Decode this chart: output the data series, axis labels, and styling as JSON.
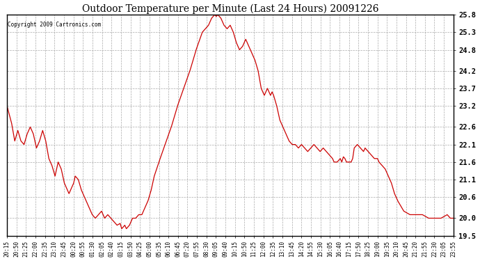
{
  "title": "Outdoor Temperature per Minute (Last 24 Hours) 20091226",
  "copyright_text": "Copyright 2009 Cartronics.com",
  "line_color": "#cc0000",
  "bg_color": "#ffffff",
  "grid_color": "#aaaaaa",
  "ylim": [
    19.5,
    25.8
  ],
  "yticks": [
    19.5,
    20.0,
    20.6,
    21.1,
    21.6,
    22.1,
    22.6,
    23.2,
    23.7,
    24.2,
    24.8,
    25.3,
    25.8
  ],
  "x_labels": [
    "20:15",
    "20:50",
    "21:25",
    "22:00",
    "22:35",
    "23:10",
    "23:45",
    "00:20",
    "00:55",
    "01:30",
    "02:05",
    "02:40",
    "03:15",
    "03:50",
    "04:25",
    "05:00",
    "05:35",
    "06:10",
    "06:45",
    "07:20",
    "07:55",
    "08:30",
    "09:05",
    "09:40",
    "10:15",
    "10:50",
    "11:25",
    "12:00",
    "12:35",
    "13:10",
    "13:45",
    "14:20",
    "14:55",
    "15:30",
    "16:05",
    "16:40",
    "17:15",
    "17:50",
    "18:25",
    "19:00",
    "19:35",
    "20:10",
    "20:45",
    "21:20",
    "21:55",
    "22:30",
    "23:05",
    "23:55"
  ],
  "keypoints": [
    [
      0,
      23.2
    ],
    [
      15,
      22.7
    ],
    [
      25,
      22.2
    ],
    [
      35,
      22.5
    ],
    [
      45,
      22.2
    ],
    [
      55,
      22.1
    ],
    [
      65,
      22.4
    ],
    [
      75,
      22.6
    ],
    [
      85,
      22.4
    ],
    [
      95,
      22.0
    ],
    [
      105,
      22.2
    ],
    [
      115,
      22.5
    ],
    [
      125,
      22.2
    ],
    [
      135,
      21.7
    ],
    [
      145,
      21.5
    ],
    [
      155,
      21.2
    ],
    [
      165,
      21.6
    ],
    [
      175,
      21.4
    ],
    [
      185,
      21.0
    ],
    [
      200,
      20.7
    ],
    [
      215,
      21.0
    ],
    [
      220,
      21.2
    ],
    [
      230,
      21.1
    ],
    [
      240,
      20.8
    ],
    [
      255,
      20.5
    ],
    [
      265,
      20.3
    ],
    [
      275,
      20.1
    ],
    [
      285,
      20.0
    ],
    [
      295,
      20.1
    ],
    [
      305,
      20.2
    ],
    [
      315,
      20.0
    ],
    [
      325,
      20.1
    ],
    [
      335,
      20.0
    ],
    [
      345,
      19.9
    ],
    [
      355,
      19.8
    ],
    [
      365,
      19.85
    ],
    [
      370,
      19.7
    ],
    [
      375,
      19.75
    ],
    [
      380,
      19.8
    ],
    [
      385,
      19.7
    ],
    [
      390,
      19.75
    ],
    [
      395,
      19.8
    ],
    [
      405,
      20.0
    ],
    [
      415,
      20.0
    ],
    [
      425,
      20.1
    ],
    [
      435,
      20.1
    ],
    [
      445,
      20.3
    ],
    [
      455,
      20.5
    ],
    [
      465,
      20.8
    ],
    [
      475,
      21.2
    ],
    [
      490,
      21.6
    ],
    [
      510,
      22.1
    ],
    [
      530,
      22.6
    ],
    [
      550,
      23.2
    ],
    [
      570,
      23.7
    ],
    [
      590,
      24.2
    ],
    [
      610,
      24.8
    ],
    [
      630,
      25.3
    ],
    [
      650,
      25.5
    ],
    [
      660,
      25.7
    ],
    [
      670,
      25.8
    ],
    [
      675,
      25.75
    ],
    [
      680,
      25.8
    ],
    [
      685,
      25.75
    ],
    [
      690,
      25.7
    ],
    [
      695,
      25.6
    ],
    [
      700,
      25.5
    ],
    [
      710,
      25.4
    ],
    [
      720,
      25.5
    ],
    [
      730,
      25.3
    ],
    [
      740,
      25.0
    ],
    [
      750,
      24.8
    ],
    [
      760,
      24.9
    ],
    [
      770,
      25.1
    ],
    [
      780,
      24.9
    ],
    [
      790,
      24.7
    ],
    [
      800,
      24.5
    ],
    [
      810,
      24.2
    ],
    [
      820,
      23.7
    ],
    [
      830,
      23.5
    ],
    [
      840,
      23.7
    ],
    [
      850,
      23.5
    ],
    [
      855,
      23.6
    ],
    [
      860,
      23.5
    ],
    [
      870,
      23.2
    ],
    [
      880,
      22.8
    ],
    [
      890,
      22.6
    ],
    [
      900,
      22.4
    ],
    [
      910,
      22.2
    ],
    [
      920,
      22.1
    ],
    [
      930,
      22.1
    ],
    [
      940,
      22.0
    ],
    [
      950,
      22.1
    ],
    [
      960,
      22.0
    ],
    [
      970,
      21.9
    ],
    [
      980,
      22.0
    ],
    [
      990,
      22.1
    ],
    [
      1000,
      22.0
    ],
    [
      1010,
      21.9
    ],
    [
      1020,
      22.0
    ],
    [
      1030,
      21.9
    ],
    [
      1040,
      21.8
    ],
    [
      1050,
      21.7
    ],
    [
      1055,
      21.6
    ],
    [
      1065,
      21.6
    ],
    [
      1075,
      21.7
    ],
    [
      1080,
      21.6
    ],
    [
      1085,
      21.75
    ],
    [
      1090,
      21.7
    ],
    [
      1095,
      21.6
    ],
    [
      1100,
      21.6
    ],
    [
      1110,
      21.6
    ],
    [
      1115,
      21.7
    ],
    [
      1120,
      22.0
    ],
    [
      1130,
      22.1
    ],
    [
      1140,
      22.0
    ],
    [
      1150,
      21.9
    ],
    [
      1155,
      22.0
    ],
    [
      1160,
      21.95
    ],
    [
      1165,
      21.9
    ],
    [
      1175,
      21.8
    ],
    [
      1185,
      21.7
    ],
    [
      1195,
      21.7
    ],
    [
      1200,
      21.6
    ],
    [
      1210,
      21.5
    ],
    [
      1220,
      21.4
    ],
    [
      1230,
      21.2
    ],
    [
      1240,
      21.0
    ],
    [
      1250,
      20.7
    ],
    [
      1260,
      20.5
    ],
    [
      1280,
      20.2
    ],
    [
      1300,
      20.1
    ],
    [
      1320,
      20.1
    ],
    [
      1340,
      20.1
    ],
    [
      1360,
      20.0
    ],
    [
      1380,
      20.0
    ],
    [
      1400,
      20.0
    ],
    [
      1420,
      20.1
    ],
    [
      1430,
      20.0
    ],
    [
      1440,
      20.0
    ]
  ]
}
